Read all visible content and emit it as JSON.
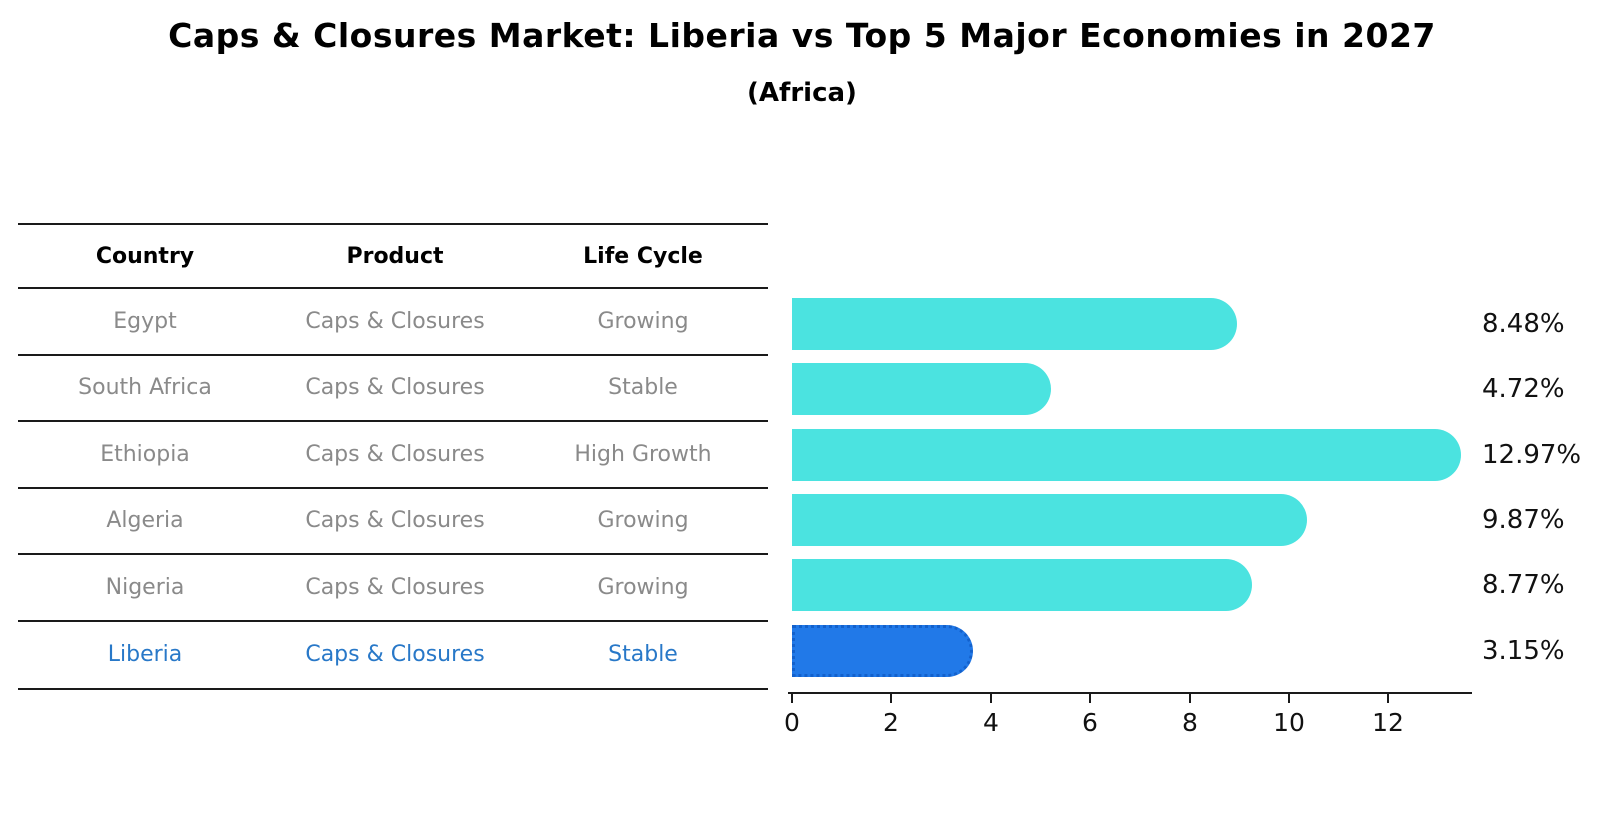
{
  "title": "Caps & Closures Market: Liberia vs Top 5 Major Economies in 2027",
  "subtitle": "(Africa)",
  "table": {
    "headers": [
      "Country",
      "Product",
      "Life Cycle"
    ],
    "rows": [
      {
        "country": "Egypt",
        "product": "Caps & Closures",
        "life_cycle": "Growing",
        "highlight": false
      },
      {
        "country": "South Africa",
        "product": "Caps & Closures",
        "life_cycle": "Stable",
        "highlight": false
      },
      {
        "country": "Ethiopia",
        "product": "Caps & Closures",
        "life_cycle": "High Growth",
        "highlight": false
      },
      {
        "country": "Algeria",
        "product": "Caps & Closures",
        "life_cycle": "Growing",
        "highlight": false
      },
      {
        "country": "Nigeria",
        "product": "Caps & Closures",
        "life_cycle": "Growing",
        "highlight": false
      },
      {
        "country": "Liberia",
        "product": "Caps & Closures",
        "life_cycle": "Stable",
        "highlight": true
      }
    ]
  },
  "chart_data": {
    "type": "bar",
    "orientation": "horizontal",
    "title": "Caps & Closures Market: Liberia vs Top 5 Major Economies in 2027 (Africa)",
    "categories": [
      "Egypt",
      "South Africa",
      "Ethiopia",
      "Algeria",
      "Nigeria",
      "Liberia"
    ],
    "values": [
      8.48,
      4.72,
      12.97,
      9.87,
      8.77,
      3.15
    ],
    "value_labels": [
      "8.48%",
      "4.72%",
      "12.97%",
      "9.87%",
      "8.77%",
      "3.15%"
    ],
    "x_ticks": [
      "0",
      "2",
      "4",
      "6",
      "8",
      "10",
      "12"
    ],
    "xlim": [
      0,
      13.7
    ],
    "grid": false,
    "legend": false,
    "highlight_index": 5,
    "bar_color": "#4be3e0",
    "highlight_bar_color": "#2179e8",
    "highlight_text_color": "#2878c8"
  }
}
